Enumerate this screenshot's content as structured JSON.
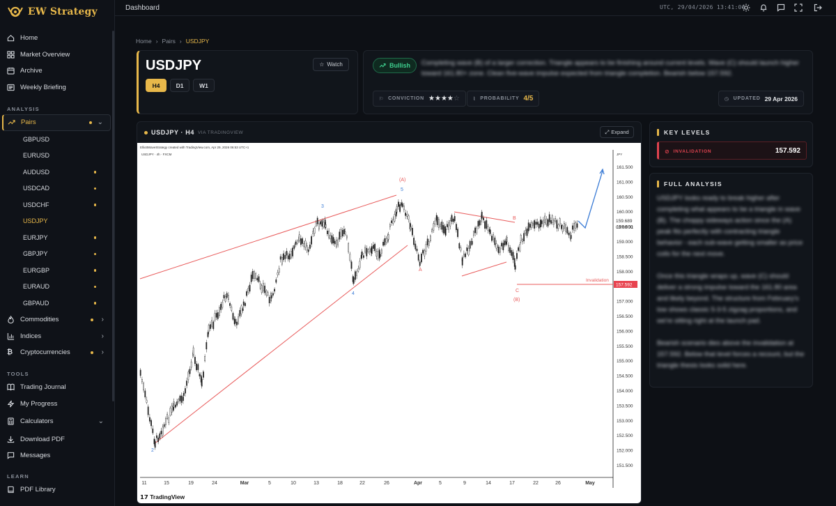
{
  "brand": {
    "name": "EW Strategy"
  },
  "topbar": {
    "title": "Dashboard",
    "clock": "UTC, 29/04/2026 13:41:06"
  },
  "nav": {
    "main": [
      {
        "label": "Home",
        "icon": "home-icon"
      },
      {
        "label": "Market Overview",
        "icon": "grid-icon"
      },
      {
        "label": "Archive",
        "icon": "calendar-icon"
      },
      {
        "label": "Weekly Briefing",
        "icon": "newspaper-icon"
      }
    ],
    "analysis_label": "ANALYSIS",
    "pairs": {
      "label": "Pairs",
      "icon": "trend-icon"
    },
    "pair_items": [
      {
        "label": "GBPUSD",
        "dot": false
      },
      {
        "label": "EURUSD",
        "dot": false
      },
      {
        "label": "AUDUSD",
        "dot": true
      },
      {
        "label": "USDCAD",
        "dot": true
      },
      {
        "label": "USDCHF",
        "dot": true
      },
      {
        "label": "USDJPY",
        "dot": false,
        "active": true
      },
      {
        "label": "EURJPY",
        "dot": true
      },
      {
        "label": "GBPJPY",
        "dot": true
      },
      {
        "label": "EURGBP",
        "dot": true
      },
      {
        "label": "EURAUD",
        "dot": true
      },
      {
        "label": "GBPAUD",
        "dot": true
      }
    ],
    "groups": [
      {
        "label": "Commodities",
        "icon": "flame-icon",
        "dot": true
      },
      {
        "label": "Indices",
        "icon": "bar-chart-icon",
        "dot": false
      },
      {
        "label": "Cryptocurrencies",
        "icon": "bitcoin-icon",
        "dot": true
      }
    ],
    "tools_label": "TOOLS",
    "tools": [
      {
        "label": "Trading Journal",
        "icon": "journal-icon"
      },
      {
        "label": "My Progress",
        "icon": "progress-icon"
      },
      {
        "label": "Calculators",
        "icon": "calculator-icon"
      },
      {
        "label": "Download PDF",
        "icon": "download-icon"
      },
      {
        "label": "Messages",
        "icon": "message-icon"
      }
    ],
    "learn_label": "LEARN",
    "learn": [
      {
        "label": "PDF Library",
        "icon": "book-icon"
      }
    ]
  },
  "breadcrumb": [
    "Home",
    "Pairs",
    "USDJPY"
  ],
  "pair": {
    "symbol": "USDJPY",
    "watch_label": "Watch",
    "timeframes": [
      "H4",
      "D1",
      "W1"
    ],
    "active_timeframe": "H4"
  },
  "sentiment": {
    "label": "Bullish",
    "color": "#3ecf8e",
    "summary": "Completing wave (B) of a larger correction. Triangle appears to be finishing around current levels. Wave (C) should launch higher toward 161.80+ zone. Clean five-wave impulse expected from triangle completion. Bearish below 157.592.",
    "conviction_label": "CONVICTION",
    "conviction_stars": 4,
    "conviction_max": 5,
    "probability_label": "PROBABILITY",
    "probability": "4/5",
    "updated_label": "UPDATED",
    "updated": "29 Apr 2026"
  },
  "chart": {
    "header": "USDJPY · H4",
    "via": "VIA TRADINGVIEW",
    "expand_label": "Expand",
    "credit": "ElliottWaveStrategy created with TradingView.com, Apr 29, 2026 06:53 UTC+1",
    "subtitle": "USDJPY · 4h · FXCM",
    "currency": "JPY",
    "price_ticks": [
      "161.500",
      "161.000",
      "160.500",
      "160.000",
      "159.500",
      "159.000",
      "158.500",
      "158.000",
      "157.500",
      "157.000",
      "156.500",
      "156.000",
      "155.500",
      "155.000",
      "154.500",
      "154.000",
      "153.500",
      "153.000",
      "152.500",
      "152.000",
      "151.500"
    ],
    "date_ticks": [
      "11",
      "15",
      "19",
      "24",
      "Mar",
      "5",
      "10",
      "13",
      "18",
      "22",
      "26",
      "Apr",
      "5",
      "9",
      "14",
      "17",
      "22",
      "26",
      "May"
    ],
    "current_price": "159.689",
    "countdown": "03:06:31",
    "invalidation_label": "Invalidation",
    "invalidation_price": "157.592",
    "wave_labels": {
      "a_cap": "(A)",
      "five": "5",
      "three": "3",
      "b": "B",
      "a": "A",
      "c": "C",
      "b_cap": "(B)",
      "four": "4",
      "two": "2"
    },
    "logo": "TradingView"
  },
  "key_levels": {
    "title": "KEY LEVELS",
    "invalidation_label": "INVALIDATION",
    "invalidation_value": "157.592",
    "accent": "#e0434f"
  },
  "analysis": {
    "title": "FULL ANALYSIS",
    "paragraphs": [
      "USDJPY looks ready to break higher after completing what appears to be a triangle in wave (B). The choppy sideways action since the (A) peak fits perfectly with contracting triangle behavior - each sub-wave getting smaller as price coils for the next move.",
      "Once this triangle wraps up, wave (C) should deliver a strong impulse toward the 161.80 area and likely beyond. The structure from February's low shows classic 5-3-5 zigzag proportions, and we're sitting right at the launch pad.",
      "Bearish scenario dies above the invalidation at 157.592. Below that level forces a recount, but the triangle thesis looks solid here."
    ]
  },
  "colors": {
    "accent": "#e8b84a",
    "bullish": "#3ecf8e",
    "danger": "#e0434f",
    "bg": "#0d1015"
  }
}
